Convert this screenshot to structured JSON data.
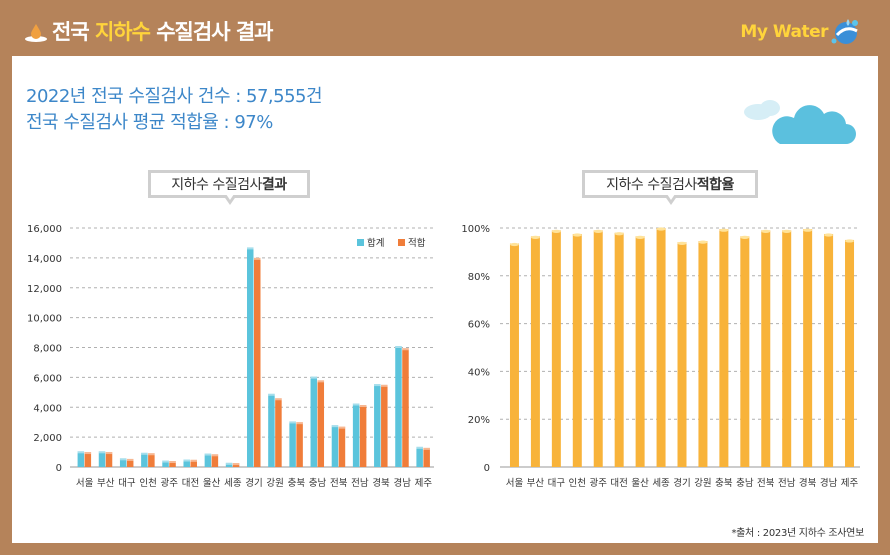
{
  "header": {
    "title_prefix": "전국 ",
    "title_highlight": "지하수",
    "title_suffix": " 수질검사 결과",
    "logo_text": "My Water"
  },
  "summary": {
    "line1": "2022년 전국 수질검사 건수 : 57,555건",
    "line2": "전국 수질검사 평균 적합율 : 97%"
  },
  "callouts": {
    "left_normal": "지하수 수질검사 ",
    "left_bold": "결과",
    "right_normal": "지하수 수질검사 ",
    "right_bold": "적합율"
  },
  "source": "*출처 : 2023년 지하수 조사연보",
  "colors": {
    "total": "#5bc4dc",
    "pass": "#f07d3a",
    "rate": "#f8b33a",
    "accent_blue": "#3d87c9",
    "brown": "#b5835a"
  },
  "chart_data": [
    {
      "type": "bar",
      "categories": [
        "서울",
        "부산",
        "대구",
        "인천",
        "광주",
        "대전",
        "울산",
        "세종",
        "경기",
        "강원",
        "충북",
        "충남",
        "전북",
        "전남",
        "경북",
        "경남",
        "제주"
      ],
      "series": [
        {
          "name": "합계",
          "values": [
            1050,
            1050,
            580,
            950,
            430,
            500,
            900,
            280,
            14700,
            4900,
            3050,
            6050,
            2800,
            4250,
            5550,
            8100,
            1350
          ]
        },
        {
          "name": "적합",
          "values": [
            1000,
            1000,
            540,
            920,
            400,
            480,
            850,
            260,
            14000,
            4600,
            3000,
            5800,
            2700,
            4150,
            5500,
            7950,
            1280
          ]
        }
      ],
      "ylim": [
        0,
        16000
      ],
      "yticks": [
        "0",
        "2,000",
        "4,000",
        "6,000",
        "8,000",
        "10,000",
        "12,000",
        "14,000",
        "16,000"
      ],
      "legend": "top-right",
      "grid": true
    },
    {
      "type": "bar",
      "categories": [
        "서울",
        "부산",
        "대구",
        "인천",
        "광주",
        "대전",
        "울산",
        "세종",
        "경기",
        "강원",
        "충북",
        "충남",
        "전북",
        "전남",
        "경북",
        "경남",
        "제주"
      ],
      "values": [
        93.5,
        96.5,
        99,
        97.5,
        99,
        98,
        96.5,
        100,
        94,
        94.5,
        99.5,
        96.5,
        99,
        99,
        99.5,
        97.5,
        95
      ],
      "ylim": [
        0,
        100
      ],
      "yticks": [
        "0",
        "20%",
        "40%",
        "60%",
        "80%",
        "100%"
      ],
      "grid": true
    }
  ]
}
